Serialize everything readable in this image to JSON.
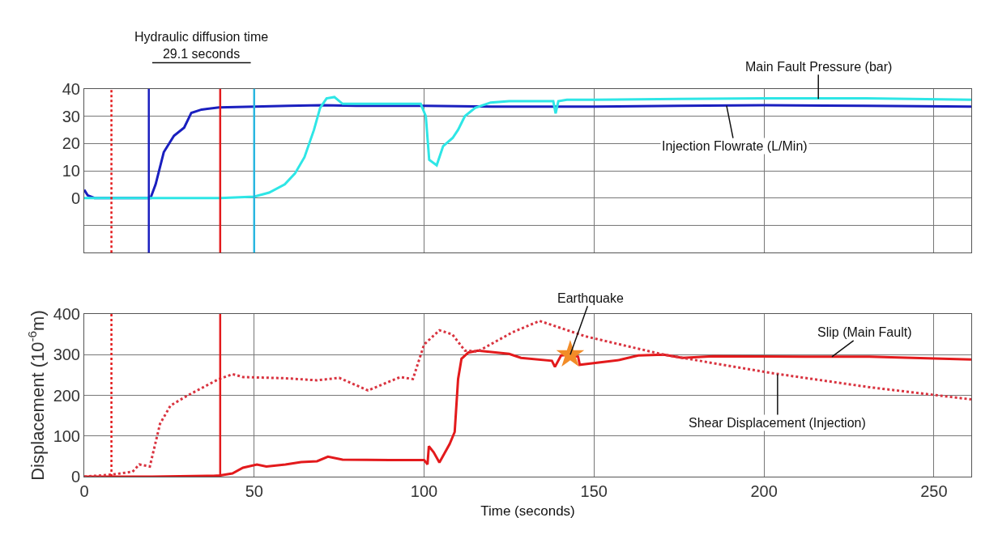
{
  "chart_data": [
    {
      "type": "line",
      "xlim": [
        0,
        261
      ],
      "ylim": [
        -20,
        40
      ],
      "xticks": [
        {
          "value": 0,
          "label": null
        },
        {
          "value": 50,
          "label": null
        },
        {
          "value": 100,
          "label": null
        },
        {
          "value": 150,
          "label": null
        },
        {
          "value": 200,
          "label": null
        },
        {
          "value": 250,
          "label": null
        }
      ],
      "yticks": [
        {
          "value": -20,
          "label": null
        },
        {
          "value": -10,
          "label": null
        },
        0,
        10,
        20,
        30,
        40
      ],
      "tick_labels": "y",
      "grid": true,
      "marker": "none",
      "line_style": "solid",
      "series": [
        {
          "color": "#1a1fbf",
          "x": [
            0,
            1,
            3,
            10,
            19.5,
            21,
            23.4,
            26.4,
            29.4,
            31.5,
            34.5,
            39.6,
            50,
            60,
            70,
            80,
            100,
            120,
            150,
            175,
            200,
            230,
            261
          ],
          "values": [
            3,
            1,
            0,
            0,
            0,
            5,
            16.8,
            22.8,
            25.8,
            31.2,
            32.4,
            33.2,
            33.5,
            33.8,
            34,
            33.8,
            33.8,
            33.5,
            33.5,
            33.8,
            34,
            33.8,
            33.5
          ]
        },
        {
          "color": "#2ee6e6",
          "x": [
            0,
            20,
            40,
            50,
            54.4,
            59,
            62,
            64.8,
            67.6,
            69.4,
            71.3,
            73.6,
            76,
            85,
            99,
            100.5,
            101.5,
            103.7,
            105.6,
            108.4,
            110,
            112,
            115,
            119.6,
            125,
            135,
            138,
            138.7,
            139.5,
            142,
            150,
            175,
            200,
            230,
            261
          ],
          "values": [
            0,
            0,
            0,
            0.5,
            2,
            5,
            9,
            15,
            25,
            33,
            36.5,
            37,
            34.5,
            34.5,
            34.5,
            30,
            14,
            12,
            19,
            22,
            25,
            30,
            33,
            35,
            35.5,
            35.5,
            35.5,
            31,
            35.5,
            36,
            36,
            36.3,
            36.5,
            36.5,
            36
          ]
        }
      ],
      "ref_lines": [
        {
          "axis": "x",
          "value": 8,
          "color": "#e31a1c",
          "line_style": "dotted"
        },
        {
          "axis": "x",
          "value": 19,
          "color": "#1a1fbf",
          "line_style": "solid"
        },
        {
          "axis": "x",
          "value": 40,
          "color": "#e31a1c",
          "line_style": "solid"
        },
        {
          "axis": "x",
          "value": 50,
          "color": "#29b6e0",
          "line_style": "solid"
        }
      ],
      "annotations": [
        "Hydraulic diffusion time\n29.1 seconds",
        {
          "text": "Main Fault Pressure (bar)",
          "x": 216,
          "y": 36.3
        },
        {
          "text": "Injection Flowrate (L/Min)",
          "x": 189,
          "y": 33.8
        }
      ]
    },
    {
      "type": "line",
      "xlim": [
        0,
        261
      ],
      "ylim": [
        0,
        400
      ],
      "xticks": [
        0,
        50,
        100,
        150,
        200,
        250
      ],
      "yticks": [
        0,
        100,
        200,
        300,
        400
      ],
      "xlabel": "Time (seconds)",
      "ylabel": "Displacement (10$^{-6}$m)",
      "grid": true,
      "marker": "none",
      "series": [
        {
          "color": "#e31a1c",
          "line_style": "solid",
          "x": [
            0,
            20,
            38,
            40,
            43.6,
            46.7,
            50.8,
            53.6,
            59.2,
            63.8,
            68.5,
            71.7,
            76,
            90,
            100,
            101,
            101.4,
            102.8,
            104.5,
            107.5,
            109,
            110,
            111,
            113,
            115.8,
            125,
            128.5,
            137.6,
            138.5,
            140.3,
            143,
            145.3,
            145.8,
            157.5,
            163,
            170.5,
            176,
            185,
            212,
            231,
            261
          ],
          "values": [
            0,
            0,
            2,
            3,
            8,
            22,
            30,
            25,
            30,
            36,
            38,
            49,
            42,
            41,
            41,
            30,
            75,
            60,
            35,
            80,
            110,
            240,
            290,
            305,
            310,
            302,
            292,
            285,
            270,
            298,
            300,
            295,
            275,
            287,
            298,
            300,
            292,
            296,
            295,
            295,
            288
          ]
        },
        {
          "color": "#d9333f",
          "line_style": "dotted",
          "x": [
            0,
            8,
            14.2,
            16.2,
            19.3,
            22.3,
            25.4,
            30.5,
            39.6,
            43.7,
            46.7,
            59,
            68.5,
            75,
            83.5,
            93,
            96.7,
            100,
            104.5,
            108.3,
            112,
            115.8,
            126,
            134,
            147.5,
            170.5,
            202,
            231,
            261
          ],
          "values": [
            0,
            5,
            12,
            30,
            25,
            130,
            175,
            200,
            240,
            252,
            245,
            242,
            237,
            243,
            212,
            245,
            240,
            325,
            360,
            350,
            310,
            308,
            355,
            383,
            345,
            300,
            255,
            220,
            190
          ]
        },
        {
          "type": "scatter",
          "marker": "star",
          "color": "#f28c28",
          "x": [
            143
          ],
          "values": [
            300
          ]
        }
      ],
      "ref_lines": [
        {
          "axis": "x",
          "value": 8,
          "color": "#e31a1c",
          "line_style": "dotted"
        },
        {
          "axis": "x",
          "value": 40,
          "color": "#e31a1c",
          "line_style": "solid"
        }
      ],
      "annotations": [
        {
          "text": "Earthquake",
          "x": 143,
          "y": 300
        },
        {
          "text": "Slip (Main Fault)",
          "x": 220,
          "y": 295
        },
        {
          "text": "Shear Displacement (Injection)",
          "x": 204,
          "y": 252
        }
      ]
    }
  ]
}
